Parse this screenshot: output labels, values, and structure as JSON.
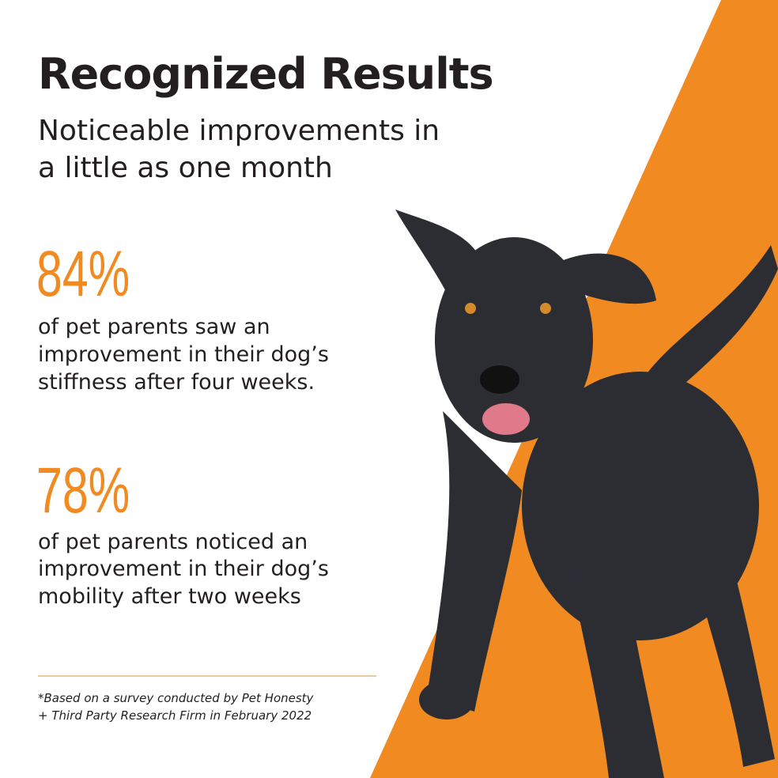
{
  "header": {
    "title": "Recognized Results",
    "subtitle_lines": [
      "Noticeable improvements in",
      "a little as one month"
    ]
  },
  "stats": [
    {
      "figure": "84%",
      "lines": [
        "of pet parents saw an",
        "improvement in their dog’s",
        "stiffness after four weeks."
      ]
    },
    {
      "figure": "78%",
      "lines": [
        "of pet parents noticed an",
        "improvement in their dog’s",
        "mobility after two weeks"
      ]
    }
  ],
  "footnote": {
    "lines": [
      "*Based on a survey conducted by Pet Honesty",
      "+ Third Party Research Firm in February 2022"
    ]
  }
}
